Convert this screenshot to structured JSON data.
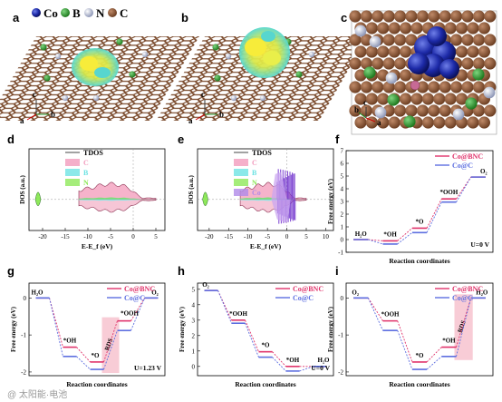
{
  "legend_top": {
    "items": [
      {
        "symbol": "Co",
        "color": "#2233aa"
      },
      {
        "symbol": "B",
        "color": "#3a9a3a"
      },
      {
        "symbol": "N",
        "color": "#c9cfe0"
      },
      {
        "symbol": "C",
        "color": "#8a5a3a"
      }
    ]
  },
  "panels": {
    "a": {
      "label": "a",
      "axes": [
        "c",
        "a",
        "b"
      ]
    },
    "b": {
      "label": "b",
      "axes": [
        "c",
        "a",
        "b"
      ]
    },
    "c": {
      "label": "c",
      "axes": [
        "b",
        "c",
        "a"
      ]
    },
    "d": {
      "label": "d"
    },
    "e": {
      "label": "e"
    },
    "f": {
      "label": "f"
    },
    "g": {
      "label": "g"
    },
    "h": {
      "label": "h"
    },
    "i": {
      "label": "i"
    }
  },
  "watermark": "@ 太阳能·电池",
  "chart_data": [
    {
      "panel": "d",
      "type": "area",
      "xlabel": "E-E_f (eV)",
      "ylabel": "DOS (a.u.)",
      "xlim": [
        -23,
        7
      ],
      "xticks": [
        -20,
        -15,
        -10,
        -5,
        0,
        5
      ],
      "legend": [
        "TDOS",
        "C",
        "B",
        "N"
      ],
      "legend_colors": [
        "#444444",
        "#f29bbd",
        "#6ee3e3",
        "#8ee85a"
      ]
    },
    {
      "panel": "e",
      "type": "area",
      "xlabel": "E-E_f (eV)",
      "ylabel": "DOS (a.u.)",
      "xlim": [
        -23,
        12
      ],
      "xticks": [
        -20,
        -15,
        -10,
        -5,
        0,
        5,
        10
      ],
      "legend": [
        "TDOS",
        "C",
        "B",
        "N",
        "Co"
      ],
      "legend_colors": [
        "#444444",
        "#f29bbd",
        "#6ee3e3",
        "#8ee85a",
        "#b08ae8"
      ]
    },
    {
      "panel": "f",
      "type": "line",
      "xlabel": "Reaction coordinates",
      "ylabel": "Free energy (eV)",
      "ylim": [
        -1,
        7
      ],
      "yticks": [
        -1,
        0,
        1,
        2,
        3,
        4,
        5,
        6,
        7
      ],
      "condition": "U=0 V",
      "steps": [
        "H2O",
        "*OH",
        "*O",
        "*OOH",
        "O2"
      ],
      "series": [
        {
          "name": "Co@BNC",
          "color": "#e0336b",
          "values": [
            0.0,
            -0.1,
            0.9,
            3.2,
            4.92
          ]
        },
        {
          "name": "Co@C",
          "color": "#5e6fe0",
          "values": [
            0.0,
            -0.35,
            0.55,
            2.95,
            4.92
          ]
        }
      ]
    },
    {
      "panel": "g",
      "type": "line",
      "xlabel": "Reaction coordinates",
      "ylabel": "Free energy (eV)",
      "ylim": [
        -2.1,
        0.4
      ],
      "yticks": [
        -2,
        -1,
        0
      ],
      "condition": "U=1.23 V",
      "rds": "RDS",
      "rds_step": 3,
      "steps": [
        "H2O",
        "*OH",
        "*O",
        "*OOH",
        "O2"
      ],
      "series": [
        {
          "name": "Co@BNC",
          "color": "#e0336b",
          "values": [
            0.0,
            -1.33,
            -1.73,
            -0.62,
            0.0
          ]
        },
        {
          "name": "Co@C",
          "color": "#5e6fe0",
          "values": [
            0.0,
            -1.58,
            -1.93,
            -0.88,
            0.0
          ]
        }
      ]
    },
    {
      "panel": "h",
      "type": "line",
      "xlabel": "Reaction coordinates",
      "ylabel": "Free energy (eV)",
      "ylim": [
        -0.6,
        5.4
      ],
      "yticks": [
        0,
        1,
        2,
        3,
        4,
        5
      ],
      "condition": "U=0 V",
      "steps": [
        "O2",
        "*OOH",
        "*O",
        "*OH",
        "H2O"
      ],
      "series": [
        {
          "name": "Co@BNC",
          "color": "#e0336b",
          "values": [
            4.92,
            3.0,
            0.95,
            0.0,
            0.0
          ]
        },
        {
          "name": "Co@C",
          "color": "#5e6fe0",
          "values": [
            4.92,
            2.8,
            0.6,
            -0.3,
            0.0
          ]
        }
      ]
    },
    {
      "panel": "i",
      "type": "line",
      "xlabel": "Reaction coordinates",
      "ylabel": "Free energy (eV)",
      "ylim": [
        -2.1,
        0.4
      ],
      "yticks": [
        -2,
        -1,
        0
      ],
      "rds": "RDS",
      "rds_step": 4,
      "steps": [
        "O2",
        "*OOH",
        "*O",
        "*OH",
        "H2O"
      ],
      "series": [
        {
          "name": "Co@BNC",
          "color": "#e0336b",
          "values": [
            0.0,
            -0.62,
            -1.73,
            -1.33,
            0.0
          ]
        },
        {
          "name": "Co@C",
          "color": "#5e6fe0",
          "values": [
            0.0,
            -0.88,
            -1.93,
            -1.58,
            0.0
          ]
        }
      ]
    }
  ]
}
